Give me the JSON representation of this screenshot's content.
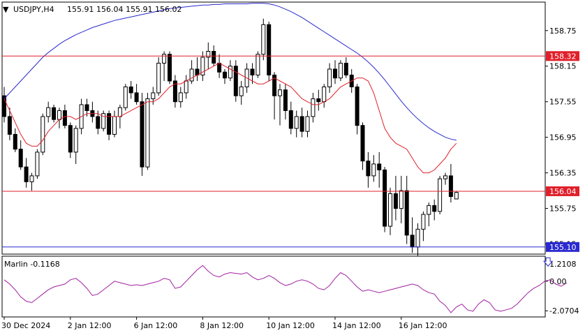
{
  "header": {
    "symbol": "USDJPY,H4",
    "ohlc": "155.91 156.04 155.91 156.02"
  },
  "colors": {
    "bull": "#ffffff",
    "bear": "#000000",
    "ma_fast": "#e0202a",
    "ma_slow": "#2a2ad0",
    "hline_red": "#e0202a",
    "hline_blue": "#2a2ad0",
    "oscillator": "#a020a0",
    "tag_red": "#e0202a",
    "tag_blue": "#2a2ad0"
  },
  "price_axis": {
    "ticks": [
      "158.75",
      "158.15",
      "157.55",
      "156.95",
      "156.35",
      "155.75",
      "155.15"
    ],
    "min": 154.98,
    "max": 159.23
  },
  "levels": [
    {
      "label": "158.32",
      "value": 158.32,
      "color": "red"
    },
    {
      "label": "156.04",
      "value": 156.04,
      "color": "red"
    },
    {
      "label": "155.10",
      "value": 155.1,
      "color": "blue"
    }
  ],
  "oscillator": {
    "name": "Marlin -0.1168",
    "ticks": [
      "1.2108",
      "0.00",
      "-2.0704"
    ],
    "min": -2.5,
    "max": 1.75,
    "values": [
      0.1,
      -0.2,
      -0.6,
      -1.1,
      -1.4,
      -1.5,
      -1.2,
      -0.9,
      -0.6,
      -0.4,
      -0.3,
      -0.2,
      0.1,
      0.2,
      -0.1,
      -0.5,
      -1.0,
      -0.9,
      -0.6,
      -0.3,
      0.0,
      -0.1,
      -0.2,
      -0.3,
      -0.25,
      -0.3,
      -0.2,
      -0.1,
      0.0,
      0.2,
      0.1,
      -0.5,
      -0.4,
      0.0,
      0.4,
      0.8,
      1.1,
      0.7,
      0.4,
      0.3,
      0.5,
      0.6,
      0.55,
      0.5,
      0.6,
      0.3,
      0.1,
      0.2,
      0.4,
      0.2,
      -0.1,
      -0.3,
      -0.2,
      0.0,
      0.1,
      0.0,
      -0.2,
      -0.5,
      -0.6,
      -0.3,
      0.2,
      0.6,
      0.4,
      0.0,
      -0.4,
      -0.7,
      -0.6,
      -0.7,
      -0.8,
      -0.7,
      -0.6,
      -0.5,
      -0.4,
      -0.3,
      -0.2,
      -0.3,
      -0.6,
      -0.8,
      -0.9,
      -1.4,
      -1.7,
      -2.2,
      -1.8,
      -1.6,
      -2.0,
      -2.1,
      -1.6,
      -1.3,
      -1.5,
      -2.0,
      -2.1,
      -2.0,
      -1.9,
      -1.6,
      -1.2,
      -0.8,
      -0.5,
      -0.3,
      0.0,
      0.1,
      -0.2,
      -0.35,
      -0.1168
    ]
  },
  "time_axis": [
    "30 Dec 2024",
    "2 Jan 12:00",
    "6 Jan 12:00",
    "8 Jan 12:00",
    "10 Jan 12:00",
    "14 Jan 12:00",
    "16 Jan 12:00"
  ],
  "chart_data": {
    "type": "candlestick",
    "title": "USDJPY,H4",
    "ylim": [
      154.98,
      159.23
    ],
    "candles": [
      [
        157.65,
        157.8,
        157.2,
        157.3
      ],
      [
        157.3,
        157.45,
        156.9,
        157.0
      ],
      [
        157.0,
        157.1,
        156.7,
        156.75
      ],
      [
        156.75,
        156.9,
        156.4,
        156.45
      ],
      [
        156.45,
        156.6,
        156.1,
        156.2
      ],
      [
        156.2,
        156.35,
        156.05,
        156.3
      ],
      [
        156.3,
        156.75,
        156.25,
        156.7
      ],
      [
        156.7,
        157.35,
        156.65,
        157.3
      ],
      [
        157.3,
        157.55,
        157.2,
        157.45
      ],
      [
        157.45,
        157.5,
        157.2,
        157.25
      ],
      [
        157.25,
        157.45,
        157.1,
        157.4
      ],
      [
        157.4,
        157.5,
        157.1,
        157.15
      ],
      [
        157.15,
        157.2,
        156.6,
        156.7
      ],
      [
        156.7,
        157.15,
        156.5,
        157.1
      ],
      [
        157.1,
        157.6,
        157.0,
        157.5
      ],
      [
        157.5,
        157.6,
        157.3,
        157.4
      ],
      [
        157.4,
        157.55,
        157.2,
        157.3
      ],
      [
        157.3,
        157.4,
        157.0,
        157.1
      ],
      [
        157.1,
        157.4,
        157.05,
        157.35
      ],
      [
        157.35,
        157.4,
        156.9,
        157.0
      ],
      [
        157.0,
        157.4,
        156.95,
        157.3
      ],
      [
        157.3,
        157.5,
        157.1,
        157.45
      ],
      [
        157.45,
        157.85,
        157.4,
        157.8
      ],
      [
        157.8,
        157.9,
        157.6,
        157.7
      ],
      [
        157.7,
        157.85,
        157.5,
        157.55
      ],
      [
        157.55,
        157.7,
        156.3,
        156.45
      ],
      [
        156.45,
        157.7,
        156.4,
        157.6
      ],
      [
        157.6,
        157.8,
        157.5,
        157.7
      ],
      [
        157.7,
        158.3,
        157.65,
        158.2
      ],
      [
        158.2,
        158.4,
        157.9,
        158.35
      ],
      [
        158.35,
        158.4,
        157.85,
        157.9
      ],
      [
        157.9,
        158.0,
        157.45,
        157.55
      ],
      [
        157.55,
        157.8,
        157.45,
        157.7
      ],
      [
        157.7,
        158.0,
        157.6,
        157.9
      ],
      [
        157.9,
        158.25,
        157.85,
        158.1
      ],
      [
        158.1,
        158.3,
        157.9,
        158.0
      ],
      [
        158.0,
        158.4,
        157.9,
        158.3
      ],
      [
        158.3,
        158.55,
        158.1,
        158.4
      ],
      [
        158.4,
        158.5,
        158.15,
        158.2
      ],
      [
        158.2,
        158.35,
        157.95,
        158.05
      ],
      [
        158.05,
        158.1,
        157.85,
        157.95
      ],
      [
        157.95,
        158.25,
        157.9,
        158.15
      ],
      [
        158.15,
        158.25,
        157.55,
        157.65
      ],
      [
        157.65,
        157.9,
        157.5,
        157.8
      ],
      [
        157.8,
        158.2,
        157.7,
        158.1
      ],
      [
        158.1,
        158.2,
        157.85,
        158.0
      ],
      [
        158.0,
        158.4,
        157.95,
        158.35
      ],
      [
        158.35,
        158.95,
        158.25,
        158.85
      ],
      [
        158.85,
        158.9,
        157.9,
        158.0
      ],
      [
        158.0,
        158.05,
        157.25,
        157.65
      ],
      [
        157.65,
        157.85,
        157.15,
        157.75
      ],
      [
        157.75,
        157.85,
        157.25,
        157.4
      ],
      [
        157.4,
        157.55,
        157.0,
        157.1
      ],
      [
        157.1,
        157.4,
        156.95,
        157.3
      ],
      [
        157.3,
        157.45,
        156.95,
        157.05
      ],
      [
        157.05,
        157.4,
        156.95,
        157.3
      ],
      [
        157.3,
        157.7,
        157.2,
        157.6
      ],
      [
        157.6,
        157.75,
        157.4,
        157.55
      ],
      [
        157.55,
        157.85,
        157.45,
        157.8
      ],
      [
        157.8,
        158.2,
        157.7,
        158.1
      ],
      [
        158.1,
        158.25,
        157.85,
        157.95
      ],
      [
        157.95,
        158.25,
        157.9,
        158.2
      ],
      [
        158.2,
        158.3,
        157.95,
        158.0
      ],
      [
        158.0,
        158.1,
        157.7,
        157.8
      ],
      [
        157.8,
        157.85,
        157.0,
        157.15
      ],
      [
        157.15,
        157.2,
        156.4,
        156.55
      ],
      [
        156.55,
        156.7,
        156.1,
        156.3
      ],
      [
        156.3,
        156.65,
        156.2,
        156.5
      ],
      [
        156.5,
        156.7,
        156.1,
        156.4
      ],
      [
        156.4,
        156.45,
        155.35,
        155.45
      ],
      [
        155.45,
        156.1,
        155.3,
        156.0
      ],
      [
        156.0,
        156.3,
        155.55,
        155.75
      ],
      [
        155.75,
        156.3,
        155.5,
        156.05
      ],
      [
        156.05,
        156.3,
        155.15,
        155.3
      ],
      [
        155.3,
        155.6,
        155.0,
        155.1
      ],
      [
        155.1,
        155.5,
        154.95,
        155.4
      ],
      [
        155.4,
        155.7,
        155.2,
        155.65
      ],
      [
        155.65,
        155.85,
        155.45,
        155.8
      ],
      [
        155.8,
        155.9,
        155.55,
        155.7
      ],
      [
        155.7,
        156.3,
        155.65,
        156.25
      ],
      [
        156.25,
        156.35,
        156.15,
        156.3
      ],
      [
        156.3,
        156.5,
        155.85,
        155.95
      ],
      [
        155.91,
        156.04,
        155.91,
        156.02
      ]
    ],
    "ma_fast": [
      157.6,
      157.4,
      157.2,
      157.0,
      156.85,
      156.8,
      156.8,
      156.9,
      157.05,
      157.15,
      157.25,
      157.3,
      157.3,
      157.25,
      157.3,
      157.35,
      157.35,
      157.35,
      157.3,
      157.3,
      157.3,
      157.3,
      157.35,
      157.4,
      157.45,
      157.5,
      157.55,
      157.55,
      157.6,
      157.7,
      157.8,
      157.85,
      157.85,
      157.9,
      157.95,
      158.0,
      158.05,
      158.1,
      158.15,
      158.2,
      158.15,
      158.1,
      158.05,
      158.0,
      157.95,
      157.9,
      157.85,
      157.85,
      157.9,
      157.95,
      157.9,
      157.85,
      157.8,
      157.7,
      157.6,
      157.55,
      157.5,
      157.5,
      157.55,
      157.6,
      157.7,
      157.8,
      157.85,
      157.9,
      157.95,
      157.95,
      157.9,
      157.7,
      157.4,
      157.1,
      156.95,
      156.85,
      156.8,
      156.75,
      156.6,
      156.45,
      156.35,
      156.35,
      156.4,
      156.5,
      156.6,
      156.75,
      156.85
    ],
    "ma_slow": [
      157.6,
      157.7,
      157.8,
      157.9,
      158.0,
      158.1,
      158.2,
      158.3,
      158.38,
      158.45,
      158.52,
      158.58,
      158.63,
      158.68,
      158.72,
      158.76,
      158.8,
      158.83,
      158.86,
      158.89,
      158.92,
      158.94,
      158.96,
      158.98,
      159.0,
      159.02,
      159.04,
      159.06,
      159.08,
      159.1,
      159.12,
      159.13,
      159.14,
      159.15,
      159.16,
      159.17,
      159.18,
      159.18,
      159.19,
      159.19,
      159.2,
      159.2,
      159.2,
      159.2,
      159.2,
      159.21,
      159.21,
      159.21,
      159.2,
      159.18,
      159.15,
      159.11,
      159.07,
      159.02,
      158.97,
      158.91,
      158.85,
      158.79,
      158.73,
      158.67,
      158.61,
      158.55,
      158.49,
      158.43,
      158.37,
      158.3,
      158.22,
      158.13,
      158.03,
      157.92,
      157.8,
      157.68,
      157.56,
      157.45,
      157.35,
      157.26,
      157.18,
      157.11,
      157.05,
      157.0,
      156.95,
      156.92,
      156.9
    ]
  }
}
